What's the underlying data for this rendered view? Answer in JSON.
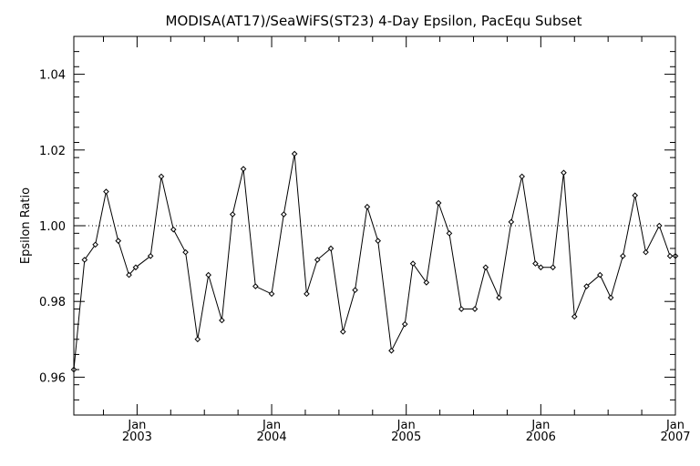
{
  "chart_data": {
    "type": "line",
    "title": "MODISA(AT17)/SeaWiFS(ST23) 4-Day Epsilon, PacEqu Subset",
    "xlabel": "",
    "ylabel": "Epsilon Ratio",
    "x_unit": "year",
    "xlim": [
      2002.53,
      2007.0
    ],
    "ylim": [
      0.95,
      1.05
    ],
    "y_ticks": [
      0.96,
      0.98,
      1.0,
      1.02,
      1.04
    ],
    "y_tick_labels": [
      "0.96",
      "0.98",
      "1.00",
      "1.02",
      "1.04"
    ],
    "x_ticks": [
      {
        "x": 2003.0,
        "label_top": "Jan",
        "label_bottom": "2003"
      },
      {
        "x": 2004.0,
        "label_top": "Jan",
        "label_bottom": "2004"
      },
      {
        "x": 2005.0,
        "label_top": "Jan",
        "label_bottom": "2005"
      },
      {
        "x": 2006.0,
        "label_top": "Jan",
        "label_bottom": "2006"
      },
      {
        "x": 2007.0,
        "label_top": "Jan",
        "label_bottom": "2007"
      }
    ],
    "reference_line": {
      "y": 1.0,
      "style": "dotted"
    },
    "grid": false,
    "legend": "none",
    "series": [
      {
        "x": [
          2002.53,
          2002.61,
          2002.69,
          2002.77,
          2002.86,
          2002.94,
          2002.99,
          2003.1,
          2003.18,
          2003.27,
          2003.36,
          2003.45,
          2003.53,
          2003.63,
          2003.71,
          2003.79,
          2003.88,
          2004.0,
          2004.09,
          2004.17,
          2004.26,
          2004.34,
          2004.44,
          2004.53,
          2004.62,
          2004.71,
          2004.79,
          2004.89,
          2004.99,
          2005.05,
          2005.15,
          2005.24,
          2005.32,
          2005.41,
          2005.51,
          2005.59,
          2005.69,
          2005.78,
          2005.86,
          2005.96,
          2006.0,
          2006.09,
          2006.17,
          2006.25,
          2006.34,
          2006.44,
          2006.52,
          2006.61,
          2006.7,
          2006.78,
          2006.88,
          2006.96,
          2007.0
        ],
        "y": [
          0.962,
          0.991,
          0.995,
          1.009,
          0.996,
          0.987,
          0.989,
          0.992,
          1.013,
          0.999,
          0.993,
          0.97,
          0.987,
          0.975,
          1.003,
          1.015,
          0.984,
          0.982,
          1.003,
          1.019,
          0.982,
          0.991,
          0.994,
          0.972,
          0.983,
          1.005,
          0.996,
          0.967,
          0.974,
          0.99,
          0.985,
          1.006,
          0.998,
          0.978,
          0.978,
          0.989,
          0.981,
          1.001,
          1.013,
          0.99,
          0.989,
          0.989,
          1.014,
          0.976,
          0.984,
          0.987,
          0.981,
          0.992,
          1.008,
          0.993,
          1.0,
          0.992,
          0.992
        ],
        "color": "#000000",
        "marker": "diamond"
      }
    ]
  }
}
